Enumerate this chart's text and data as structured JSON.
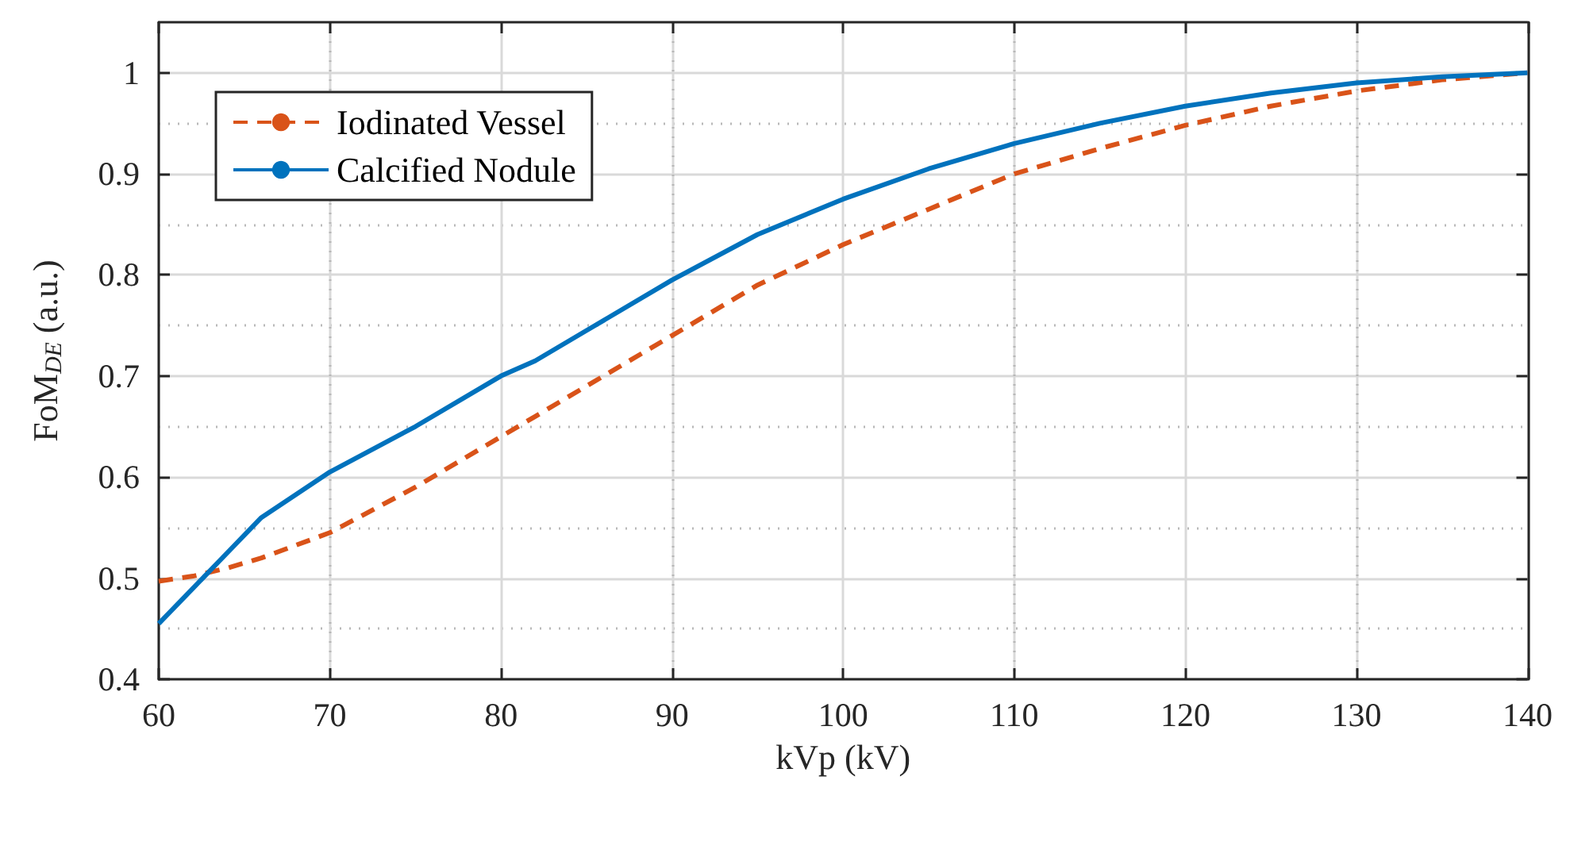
{
  "chart_data": {
    "type": "line",
    "xlabel": "kVp (kV)",
    "ylabel": "FoM$_{DE}$ (a.u.)",
    "xlim": [
      60,
      140
    ],
    "xticks": [
      60,
      70,
      80,
      90,
      100,
      110,
      120,
      130,
      140
    ],
    "ylim": [
      0.4,
      1.05
    ],
    "yticks": [
      0.4,
      0.5,
      0.6,
      0.7,
      0.8,
      0.9,
      1
    ],
    "grid": true,
    "legend": "top left",
    "marker": "none",
    "x": [
      60,
      62,
      64,
      66,
      70,
      75,
      80,
      82,
      85,
      90,
      95,
      100,
      105,
      110,
      115,
      120,
      125,
      130,
      135,
      140
    ],
    "series": [
      {
        "name": "Iodinated Vessel",
        "color": "#d95319",
        "line_style": "dashed",
        "values": [
          0.497,
          0.502,
          0.51,
          0.52,
          0.545,
          0.59,
          0.64,
          0.66,
          0.69,
          0.74,
          0.79,
          0.83,
          0.865,
          0.9,
          0.925,
          0.948,
          0.967,
          0.982,
          0.993,
          1
        ]
      },
      {
        "name": "Calcified Nodule",
        "color": "#0072bd",
        "line_style": "solid",
        "values": [
          0.455,
          0.49,
          0.525,
          0.56,
          0.605,
          0.65,
          0.7,
          0.715,
          0.745,
          0.795,
          0.84,
          0.875,
          0.905,
          0.93,
          0.95,
          0.967,
          0.98,
          0.99,
          0.996,
          1
        ]
      }
    ]
  }
}
